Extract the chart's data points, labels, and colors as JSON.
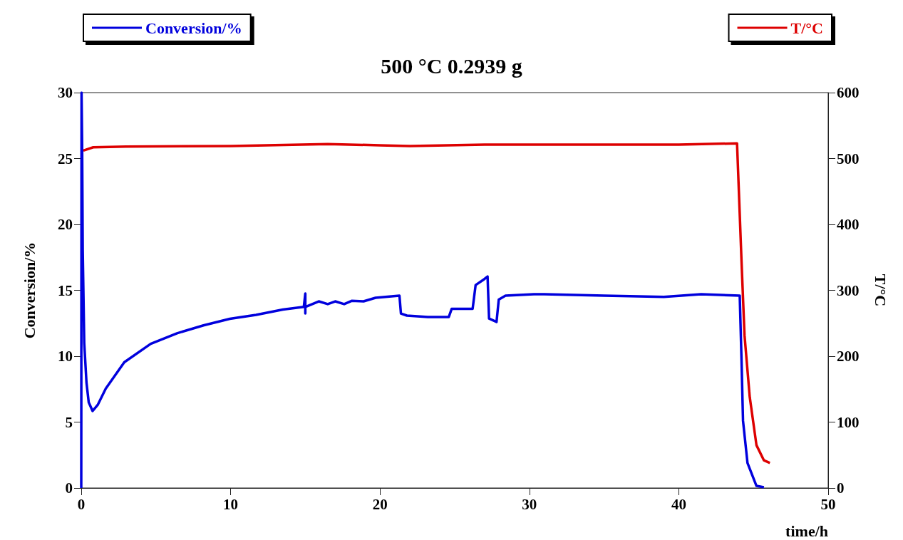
{
  "chart_data": {
    "type": "line",
    "title": "500 °C 0.2939 g",
    "xlabel": "time/h",
    "ylabel": "Conversion/%",
    "y2label": "T/°C",
    "xlim": [
      0,
      50
    ],
    "xticks": [
      0,
      10,
      20,
      30,
      40,
      50
    ],
    "ylim": [
      0,
      30
    ],
    "yticks": [
      0,
      5,
      10,
      15,
      20,
      25,
      30
    ],
    "y2lim": [
      0,
      600
    ],
    "y2ticks": [
      0,
      100,
      200,
      300,
      400,
      500,
      600
    ],
    "grid": false,
    "legend": "top",
    "marker": "none",
    "line_style": "solid",
    "series": [
      {
        "name": "Conversion/%",
        "color": "#0000dd",
        "x": [
          0,
          0.02,
          0.06,
          0.1,
          0.2,
          0.35,
          0.5,
          0.76,
          1.1,
          1.64,
          2.88,
          4.65,
          6.41,
          8.18,
          9.95,
          11.7,
          13.5,
          14.9,
          15.0,
          15.0,
          15.0,
          15.9,
          16.5,
          17.0,
          17.6,
          18.1,
          18.9,
          19.7,
          21.3,
          21.4,
          21.8,
          23.2,
          24.6,
          24.8,
          26.2,
          26.4,
          26.9,
          27.2,
          27.3,
          27.8,
          27.95,
          28.4,
          30.3,
          31,
          35,
          39,
          41.5,
          44.08,
          44.2,
          44.3,
          44.6,
          45.2,
          45.7
        ],
        "values": [
          0,
          30,
          26,
          18,
          11,
          8,
          6.5,
          5.84,
          6.3,
          7.54,
          9.54,
          10.94,
          11.74,
          12.34,
          12.84,
          13.14,
          13.54,
          13.74,
          14.76,
          13.24,
          13.74,
          14.16,
          13.95,
          14.16,
          13.95,
          14.2,
          14.16,
          14.43,
          14.6,
          13.24,
          13.08,
          12.97,
          12.97,
          13.6,
          13.6,
          15.4,
          15.78,
          16.05,
          12.86,
          12.6,
          14.3,
          14.6,
          14.7,
          14.7,
          14.6,
          14.5,
          14.7,
          14.6,
          9.7,
          5.1,
          1.9,
          0.16,
          0.05
        ]
      },
      {
        "name": "T/°C",
        "color": "#dd0000",
        "axis": "y2",
        "x": [
          0.14,
          0.8,
          3,
          10,
          16.5,
          20,
          22,
          27,
          30,
          40,
          43.9,
          44.2,
          44.4,
          44.75,
          45.2,
          45.7,
          46.1
        ],
        "values": [
          512,
          517,
          518,
          519,
          522,
          520,
          519,
          521,
          521,
          521,
          523,
          344,
          232,
          138,
          65,
          42,
          38
        ]
      }
    ]
  }
}
